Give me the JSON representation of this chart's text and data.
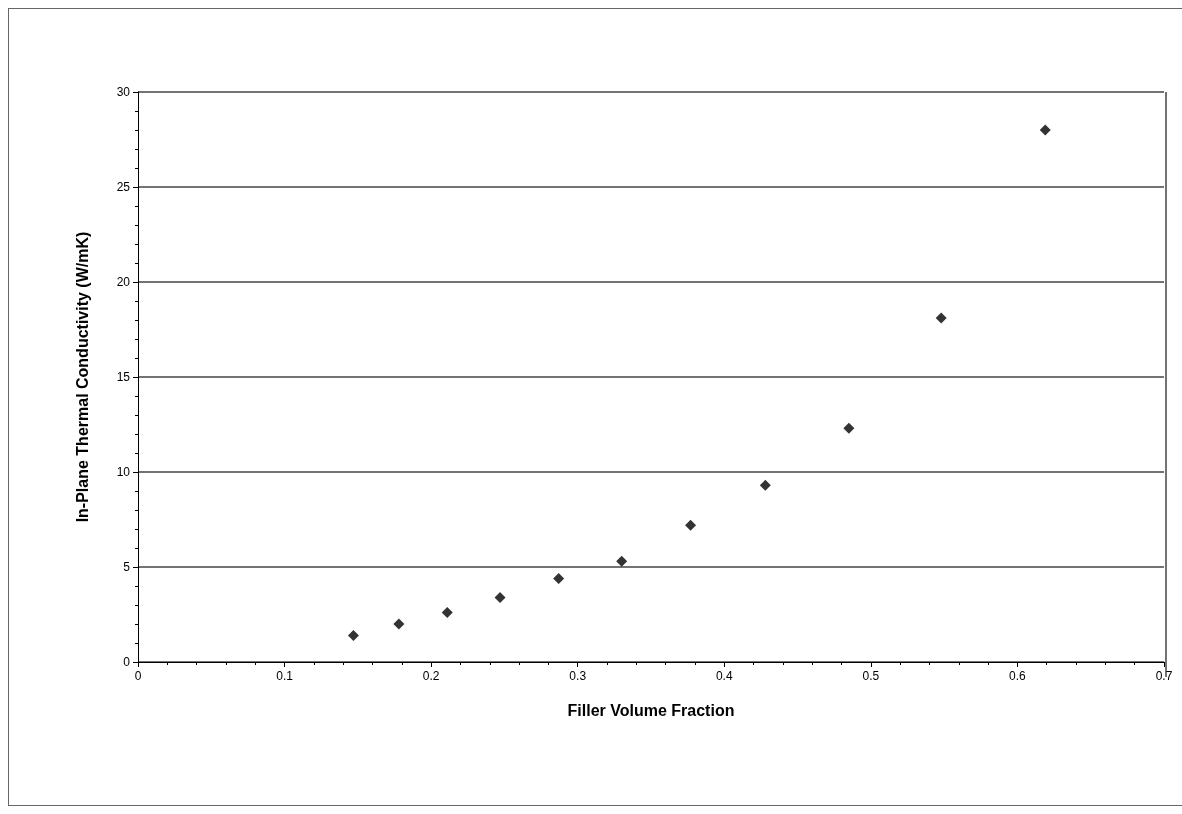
{
  "chart_data": {
    "type": "scatter",
    "xlabel": "Filler Volume Fraction",
    "ylabel": "In-Plane Thermal Conductivity (W/mK)",
    "x": [
      0.147,
      0.178,
      0.211,
      0.247,
      0.287,
      0.33,
      0.377,
      0.428,
      0.485,
      0.548,
      0.619
    ],
    "series": [
      {
        "color": "#000000",
        "values": [
          1.4,
          2.0,
          2.6,
          3.4,
          4.4,
          5.3,
          7.2,
          9.3,
          12.3,
          18.1,
          28.0
        ]
      }
    ],
    "xlim": [
      0,
      0.7
    ],
    "xticks": [
      0,
      0.1,
      0.2,
      0.3,
      0.4,
      0.5,
      0.6,
      0.7
    ],
    "ylim": [
      0,
      30
    ],
    "yticks": [
      0,
      5,
      10,
      15,
      20,
      25,
      30
    ],
    "grid": "y",
    "marker": "diamond"
  }
}
